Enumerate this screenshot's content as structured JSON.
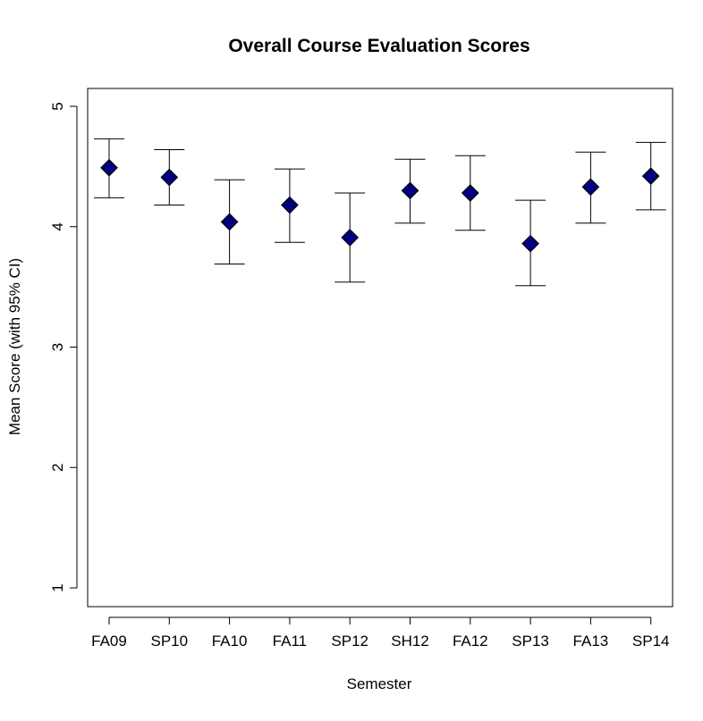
{
  "chart_data": {
    "type": "scatter",
    "title": "Overall Course Evaluation Scores",
    "xlabel": "Semester",
    "ylabel": "Mean Score (with 95% CI)",
    "categories": [
      "FA09",
      "SP10",
      "FA10",
      "FA11",
      "SP12",
      "SH12",
      "FA12",
      "SP13",
      "FA13",
      "SP14"
    ],
    "series": [
      {
        "values": [
          4.49,
          4.41,
          4.04,
          4.18,
          3.91,
          4.3,
          4.28,
          3.86,
          4.33,
          4.42
        ],
        "ci_lower": [
          4.24,
          4.18,
          3.69,
          3.87,
          3.54,
          4.03,
          3.97,
          3.51,
          4.03,
          4.14
        ],
        "ci_upper": [
          4.73,
          4.64,
          4.39,
          4.48,
          4.28,
          4.56,
          4.59,
          4.22,
          4.62,
          4.7
        ]
      }
    ],
    "yticks": [
      1,
      2,
      3,
      4,
      5
    ],
    "ylim": [
      0.85,
      5.1
    ],
    "grid": false,
    "legend": "none",
    "colors": {
      "marker_fill": "#000080",
      "marker_stroke": "#000000",
      "error_bar": "#000000",
      "axis": "#000000"
    }
  }
}
